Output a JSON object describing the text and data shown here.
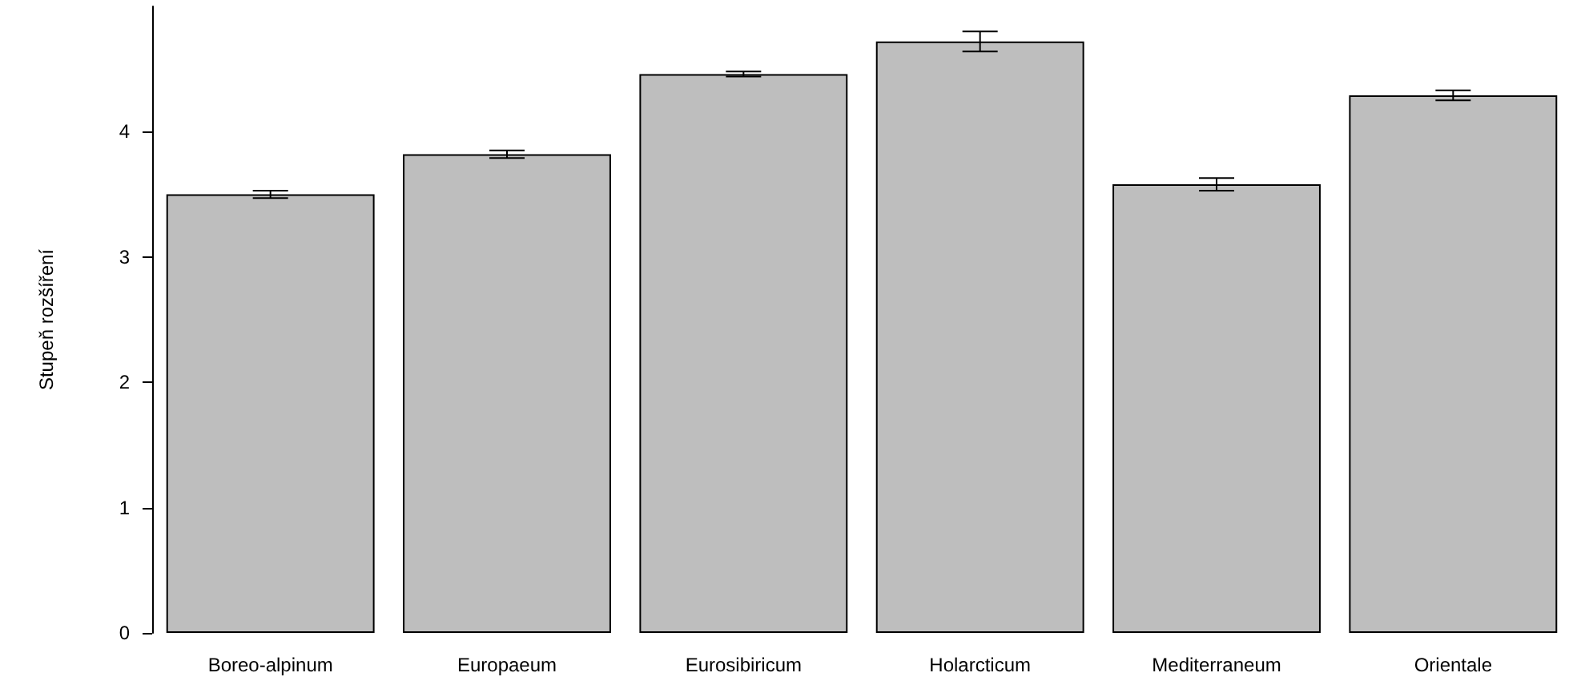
{
  "chart_data": {
    "type": "bar",
    "ylabel": "Stupeň rozšíření",
    "categories": [
      "Boreo-alpinum",
      "Europaeum",
      "Eurosibiricum",
      "Holarcticum",
      "Mediterraneum",
      "Orientale"
    ],
    "values": [
      3.5,
      3.82,
      4.46,
      4.72,
      3.58,
      4.29
    ],
    "errors": [
      0.03,
      0.03,
      0.02,
      0.08,
      0.05,
      0.04
    ],
    "color": "#bebebe",
    "ylim": [
      0,
      5
    ],
    "yticks": [
      0,
      1,
      2,
      3,
      4
    ],
    "grid": false
  }
}
